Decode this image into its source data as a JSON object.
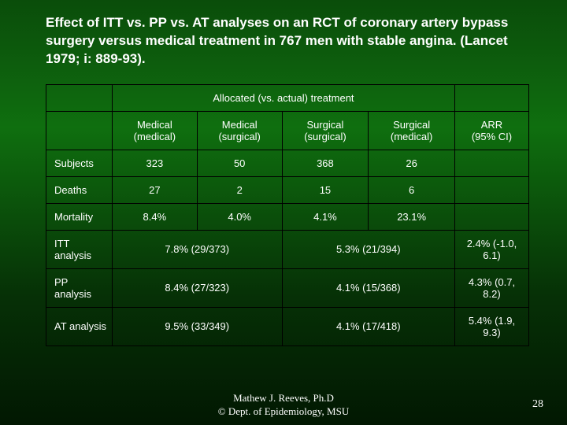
{
  "title": "Effect of ITT vs. PP vs. AT analyses on an RCT of coronary artery bypass surgery versus medical treatment in 767 men with stable angina. (Lancet 1979; i: 889-93).",
  "header_allocated": "Allocated (vs. actual) treatment",
  "columns": {
    "med_med": "Medical (medical)",
    "med_surg": "Medical (surgical)",
    "surg_surg": "Surgical (surgical)",
    "surg_med": "Surgical (medical)",
    "arr": "ARR\n(95% CI)"
  },
  "rows_simple": [
    {
      "label": "Subjects",
      "cells": [
        "323",
        "50",
        "368",
        "26"
      ],
      "arr": ""
    },
    {
      "label": "Deaths",
      "cells": [
        "27",
        "2",
        "15",
        "6"
      ],
      "arr": ""
    },
    {
      "label": "Mortality",
      "cells": [
        "8.4%",
        "4.0%",
        "4.1%",
        "23.1%"
      ],
      "arr": ""
    }
  ],
  "rows_merged": [
    {
      "label": "ITT analysis",
      "left": "7.8% (29/373)",
      "right": "5.3% (21/394)",
      "arr": "2.4% (-1.0, 6.1)"
    },
    {
      "label": "PP analysis",
      "left": "8.4% (27/323)",
      "right": "4.1% (15/368)",
      "arr": "4.3% (0.7, 8.2)"
    },
    {
      "label": "AT analysis",
      "left": "9.5% (33/349)",
      "right": "4.1% (17/418)",
      "arr": "5.4% (1.9, 9.3)"
    }
  ],
  "footer_line1": "Mathew J. Reeves, Ph.D",
  "footer_line2": "© Dept. of Epidemiology, MSU",
  "page_number": "28",
  "style": {
    "bg_gradient_stops": [
      "#0a4d0a",
      "#0d5d0d",
      "#0f6f0f",
      "#063006",
      "#021802"
    ],
    "text_color": "#ffffff",
    "border_color": "#000000",
    "title_fontsize": 17,
    "table_fontsize": 13,
    "footer_fontsize": 13,
    "font_family_body": "Arial, sans-serif",
    "font_family_footer": "Times New Roman, serif"
  }
}
